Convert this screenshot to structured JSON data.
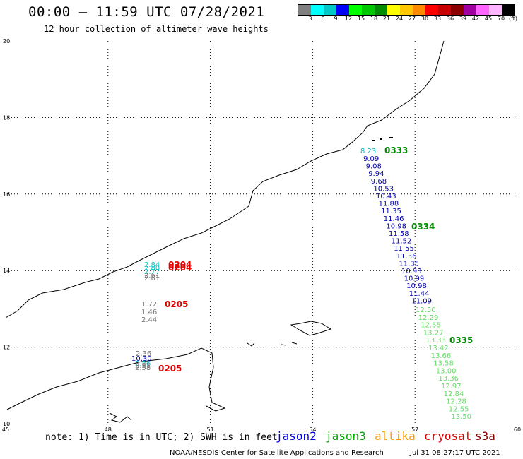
{
  "header": {
    "title": "00:00 – 11:59 UTC 07/28/2021",
    "subtitle": "12 hour collection of altimeter wave heights"
  },
  "legend": {
    "unit": "(ft)",
    "bins": [
      {
        "label": "3",
        "color": "#808080"
      },
      {
        "label": "6",
        "color": "#00ffff"
      },
      {
        "label": "9",
        "color": "#00c8c8"
      },
      {
        "label": "12",
        "color": "#0000ff"
      },
      {
        "label": "15",
        "color": "#00ff00"
      },
      {
        "label": "18",
        "color": "#00c800"
      },
      {
        "label": "21",
        "color": "#008c00"
      },
      {
        "label": "24",
        "color": "#ffff00"
      },
      {
        "label": "27",
        "color": "#ffc800"
      },
      {
        "label": "30",
        "color": "#ff8c00"
      },
      {
        "label": "33",
        "color": "#ff0000"
      },
      {
        "label": "36",
        "color": "#c80000"
      },
      {
        "label": "39",
        "color": "#8c0000"
      },
      {
        "label": "42",
        "color": "#a000a0"
      },
      {
        "label": "45",
        "color": "#ff64ff"
      },
      {
        "label": "70",
        "color": "#ffb4ff"
      },
      {
        "label": "",
        "color": "#000000"
      }
    ]
  },
  "axes": {
    "x_ticks": [
      "45",
      "48",
      "51",
      "54",
      "57",
      "60"
    ],
    "y_ticks": [
      "20",
      "18",
      "16",
      "14",
      "12",
      "10"
    ]
  },
  "tracks": {
    "jason2": {
      "color": "#0000aa",
      "values": [
        "9.09",
        "9.08",
        "9.94",
        "9.68",
        "10.53",
        "10.43",
        "11.88",
        "11.35",
        "11.46",
        "10.98",
        "11.58",
        "11.52",
        "11.55",
        "11.36",
        "11.35",
        "10.93",
        "10.99",
        "10.98",
        "11.44",
        "11.09"
      ]
    },
    "jason2_first": {
      "value": "8.23",
      "color": "#00b4c8"
    },
    "jason3": {
      "color": "#64dc64",
      "values": [
        "12.50",
        "12.29",
        "12.55",
        "13.27",
        "13.33",
        "13.42",
        "13.66",
        "13.58",
        "13.00",
        "13.36",
        "12.97",
        "12.84",
        "12.28",
        "12.55",
        "13.50"
      ]
    },
    "west_a": {
      "values": [
        "2.84",
        "2.80",
        "2.77",
        "2.61"
      ]
    },
    "west_b": {
      "values": [
        "1.72",
        "1.46",
        "2.44"
      ]
    },
    "west_c": {
      "values": [
        "2.36",
        "10.30",
        "2.86",
        "2.51",
        "2.58"
      ]
    }
  },
  "time_labels": {
    "t0333": {
      "text": "0333",
      "color": "#008c00"
    },
    "t0334": {
      "text": "0334",
      "color": "#008c00"
    },
    "t0335": {
      "text": "0335",
      "color": "#008c00"
    },
    "t0204a": {
      "text": "0204",
      "color": "#e00000"
    },
    "t0204b": {
      "text": "0204",
      "color": "#e00000"
    },
    "t0205a": {
      "text": "0205",
      "color": "#e00000"
    },
    "t0205b": {
      "text": "0205",
      "color": "#e00000"
    }
  },
  "footer": {
    "note": "note: 1) Time is in UTC; 2) SWH is in feet",
    "satellites": [
      {
        "name": "jason2",
        "color": "#0000dd"
      },
      {
        "name": "jason3",
        "color": "#00aa00"
      },
      {
        "name": "altika",
        "color": "#ff9900"
      },
      {
        "name": "cryosat",
        "color": "#dd0000"
      },
      {
        "name": "s3a",
        "color": "#880000"
      }
    ],
    "credit": "NOAA/NESDIS Center for Satellite Applications and Research",
    "timestamp": "Jul 31 08:27:17 UTC 2021"
  }
}
